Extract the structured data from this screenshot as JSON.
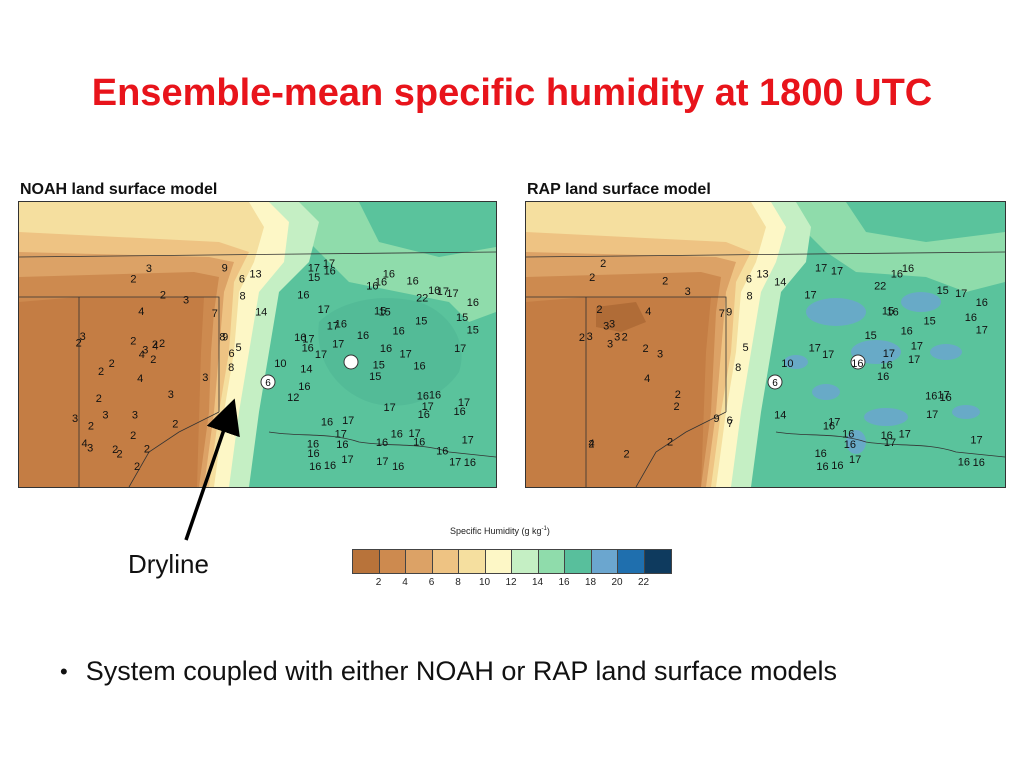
{
  "slide": {
    "title": "Ensemble-mean specific humidity at 1800 UTC",
    "left_panel_title": "NOAH land surface model",
    "right_panel_title": "RAP land surface model",
    "annotation_label": "Dryline",
    "bullet": "System coupled with either NOAH or RAP land surface models"
  },
  "colorbar": {
    "title": "Specific Humidity (g kg",
    "title_sup": "-1",
    "title_close": ")",
    "labels": [
      "2",
      "4",
      "6",
      "8",
      "10",
      "12",
      "14",
      "16",
      "18",
      "20",
      "22"
    ],
    "colors": [
      "#b8733a",
      "#cd8a4f",
      "#dca266",
      "#eec383",
      "#f5df9f",
      "#fdf7c6",
      "#c5efc4",
      "#8fdcab",
      "#58bf9c",
      "#6ba6cf",
      "#1f6fae",
      "#0e3a5e"
    ]
  },
  "maps": {
    "noah_labels": [
      "4",
      "7",
      "8",
      "4",
      "5",
      "7",
      "6",
      "4",
      "8",
      "10",
      "13",
      "16",
      "17",
      "16",
      "15",
      "15",
      "16",
      "15",
      "16",
      "16",
      "16",
      "16",
      "16",
      "15",
      "4",
      "12",
      "17",
      "16",
      "16",
      "16",
      "15",
      "15",
      "2",
      "6",
      "14",
      "16",
      "17",
      "17",
      "17",
      "16",
      "3",
      "9",
      "17",
      "16",
      "17",
      "16",
      "17",
      "16",
      "16",
      "2",
      "2",
      "15",
      "16",
      "17",
      "16",
      "17",
      "16",
      "17",
      "16",
      "17",
      "16",
      "2",
      "3",
      "16",
      "17",
      "17",
      "16",
      "16",
      "16",
      "3",
      "3",
      "2",
      "3",
      "8",
      "16",
      "15",
      "17",
      "16",
      "2",
      "2",
      "3",
      "3",
      "16",
      "17",
      "17",
      "17",
      "17",
      "16",
      "16",
      "17",
      "2",
      "3",
      "2",
      "2",
      "4",
      "16",
      "17",
      "2",
      "2",
      "22",
      "2",
      "9",
      "14",
      "2",
      "2",
      "3",
      "2",
      "2",
      "3"
    ],
    "rap_labels": [
      "4",
      "7",
      "8",
      "4",
      "5",
      "7",
      "6",
      "4",
      "8",
      "10",
      "13",
      "16",
      "17",
      "16",
      "16",
      "15",
      "16",
      "15",
      "16",
      "17",
      "15",
      "16",
      "16",
      "16",
      "17",
      "16",
      "2",
      "14",
      "17",
      "16",
      "17",
      "16",
      "16",
      "17",
      "9",
      "15",
      "6",
      "16",
      "17",
      "17",
      "16",
      "2",
      "3",
      "17",
      "17",
      "2",
      "3",
      "16",
      "17",
      "17",
      "16",
      "16",
      "17",
      "2",
      "2",
      "16",
      "17",
      "17",
      "17",
      "17",
      "16",
      "16",
      "3",
      "3",
      "3",
      "2",
      "2",
      "22",
      "2",
      "9",
      "14",
      "2",
      "2",
      "3",
      "2",
      "2",
      "3"
    ]
  }
}
